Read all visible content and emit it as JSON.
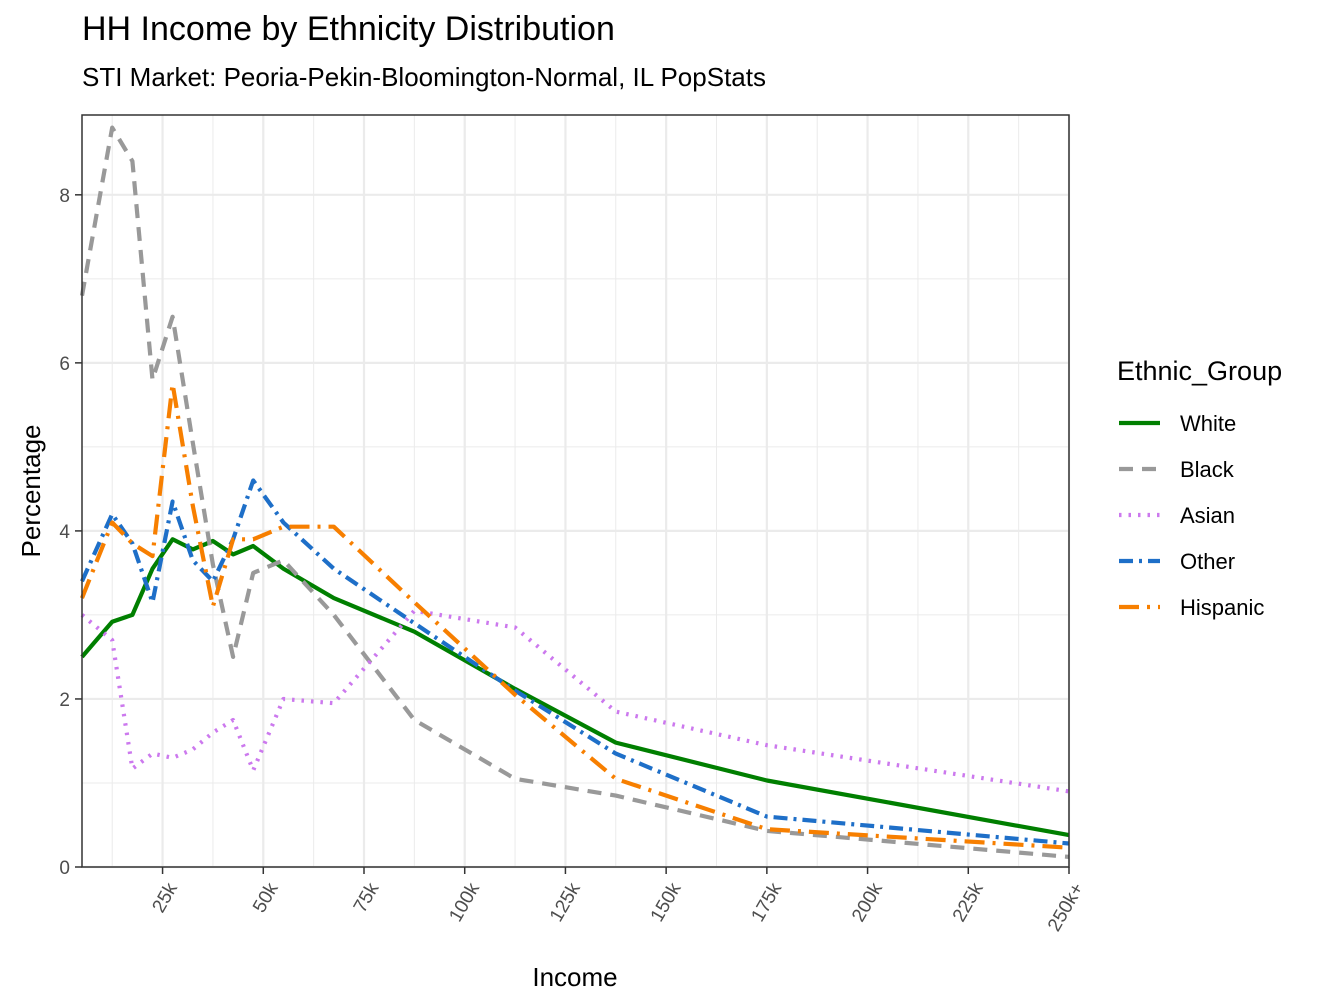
{
  "chart_data": {
    "type": "line",
    "title": "HH Income by Ethnicity Distribution",
    "subtitle": "STI Market: Peoria-Pekin-Bloomington-Normal, IL PopStats",
    "xlabel": "Income",
    "ylabel": "Percentage",
    "xlim": [
      5,
      250
    ],
    "ylim": [
      0,
      8.95
    ],
    "x_ticks": [
      {
        "value": 25,
        "label": "25k"
      },
      {
        "value": 50,
        "label": "50k"
      },
      {
        "value": 75,
        "label": "75k"
      },
      {
        "value": 100,
        "label": "100k"
      },
      {
        "value": 125,
        "label": "125k"
      },
      {
        "value": 150,
        "label": "150k"
      },
      {
        "value": 175,
        "label": "175k"
      },
      {
        "value": 200,
        "label": "200k"
      },
      {
        "value": 225,
        "label": "225k"
      },
      {
        "value": 250,
        "label": "250k+"
      }
    ],
    "y_ticks": [
      0,
      2,
      4,
      6,
      8
    ],
    "grid": true,
    "legend_title": "Ethnic_Group",
    "legend_position": "right",
    "series": [
      {
        "name": "White",
        "color": "#007f00",
        "dash": "solid",
        "x": [
          5,
          12.5,
          17.5,
          22.5,
          27.5,
          32.5,
          37.5,
          42.5,
          47.5,
          55,
          67.5,
          87.5,
          112.5,
          137.5,
          175,
          250
        ],
        "y": [
          2.5,
          2.92,
          3.0,
          3.55,
          3.9,
          3.78,
          3.88,
          3.72,
          3.82,
          3.55,
          3.2,
          2.8,
          2.12,
          1.48,
          1.03,
          0.38
        ]
      },
      {
        "name": "Black",
        "color": "#999999",
        "dash": "dashed",
        "x": [
          5,
          12.5,
          17.5,
          22.5,
          27.5,
          32.5,
          37.5,
          42.5,
          47.5,
          55,
          67.5,
          87.5,
          112.5,
          137.5,
          175,
          250
        ],
        "y": [
          6.8,
          8.8,
          8.4,
          5.8,
          6.55,
          5.05,
          3.6,
          2.5,
          3.5,
          3.65,
          3.0,
          1.75,
          1.05,
          0.85,
          0.43,
          0.12
        ]
      },
      {
        "name": "Asian",
        "color": "#cc79ee",
        "dash": "dotted",
        "x": [
          5,
          12.5,
          17.5,
          22.5,
          27.5,
          32.5,
          37.5,
          42.5,
          47.5,
          55,
          67.5,
          87.5,
          112.5,
          137.5,
          175,
          250
        ],
        "y": [
          3.0,
          2.7,
          1.17,
          1.35,
          1.3,
          1.4,
          1.6,
          1.75,
          1.15,
          2.0,
          1.95,
          3.05,
          2.85,
          1.85,
          1.45,
          0.9
        ]
      },
      {
        "name": "Other",
        "color": "#1e6fc8",
        "dash": "dashdot",
        "x": [
          5,
          12.5,
          17.5,
          22.5,
          27.5,
          32.5,
          37.5,
          42.5,
          47.5,
          55,
          67.5,
          87.5,
          112.5,
          137.5,
          175,
          250
        ],
        "y": [
          3.4,
          4.2,
          3.85,
          3.15,
          4.35,
          3.65,
          3.4,
          3.9,
          4.6,
          4.1,
          3.55,
          2.9,
          2.1,
          1.35,
          0.6,
          0.28
        ]
      },
      {
        "name": "Hispanic",
        "color": "#f77f00",
        "dash": "longdash",
        "x": [
          5,
          12.5,
          17.5,
          22.5,
          27.5,
          32.5,
          37.5,
          42.5,
          47.5,
          55,
          67.5,
          87.5,
          112.5,
          137.5,
          175,
          250
        ],
        "y": [
          3.2,
          4.1,
          3.85,
          3.7,
          5.75,
          4.3,
          3.1,
          3.9,
          3.9,
          4.05,
          4.05,
          3.15,
          2.05,
          1.05,
          0.45,
          0.23
        ]
      }
    ]
  }
}
